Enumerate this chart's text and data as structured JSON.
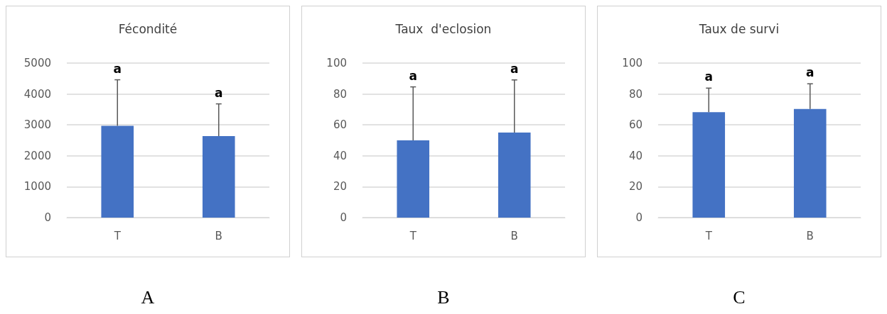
{
  "chart_data": [
    {
      "type": "bar",
      "title": "Fécondité",
      "categories": [
        "T",
        "B"
      ],
      "values": [
        2970,
        2640
      ],
      "color": "#4472c4",
      "errors": [
        [
          2970,
          4460
        ],
        [
          2640,
          3680
        ]
      ],
      "ylim": [
        0,
        5000
      ],
      "yticks": [
        0,
        1000,
        2000,
        3000,
        4000,
        5000
      ],
      "grid": "y",
      "annotations": [
        "a",
        "a",
        "A"
      ]
    },
    {
      "type": "bar",
      "title": "Taux  d'eclosion",
      "categories": [
        "T",
        "B"
      ],
      "values": [
        50,
        55
      ],
      "color": "#4472c4",
      "errors": [
        [
          50,
          84.6
        ],
        [
          55,
          89.1
        ]
      ],
      "ylim": [
        0,
        100
      ],
      "yticks": [
        0,
        20,
        40,
        60,
        80,
        100
      ],
      "grid": "y",
      "annotations": [
        "a",
        "a",
        "B"
      ]
    },
    {
      "type": "bar",
      "title": "Taux de survi",
      "categories": [
        "T",
        "B"
      ],
      "values": [
        68.2,
        70.3
      ],
      "color": "#4472c4",
      "errors": [
        [
          68.2,
          83.8
        ],
        [
          70.3,
          86.6
        ]
      ],
      "ylim": [
        0,
        100
      ],
      "yticks": [
        0,
        20,
        40,
        60,
        80,
        100
      ],
      "grid": "y",
      "annotations": [
        "a",
        "a",
        "C"
      ]
    }
  ]
}
